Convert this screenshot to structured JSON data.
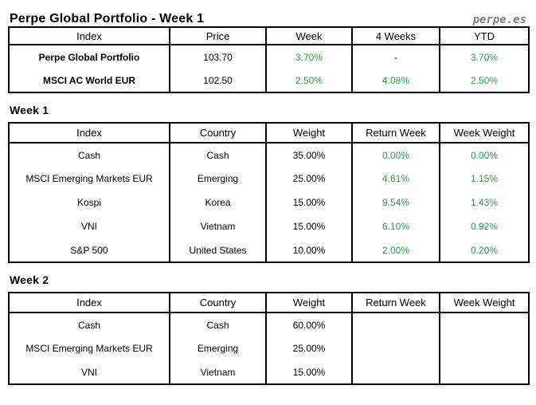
{
  "header": {
    "title": "Perpe Global Portfolio - Week 1",
    "brand": "perpe.es"
  },
  "colors": {
    "positive_green": "#2a9e4a",
    "brand_gray": "#7f7f7f",
    "border_black": "#000000",
    "text_black": "#000000",
    "page_bg": "#ffffff"
  },
  "summary_table": {
    "headers": [
      "Index",
      "Price",
      "Week",
      "4 Weeks",
      "YTD"
    ],
    "rows": [
      [
        "Perpe Global Portfolio",
        "103.70",
        "3.70%",
        "-",
        "3.70%"
      ],
      [
        "MSCI AC World EUR",
        "102.50",
        "2.50%",
        "4.08%",
        "2.50%"
      ]
    ]
  },
  "week1": {
    "title": "Week 1",
    "headers": [
      "Index",
      "Country",
      "Weight",
      "Return Week",
      "Week Weight"
    ],
    "rows": [
      [
        "Cash",
        "Cash",
        "35.00%",
        "0.00%",
        "0.00%"
      ],
      [
        "MSCI Emerging Markets EUR",
        "Emerging",
        "25.00%",
        "4.61%",
        "1.15%"
      ],
      [
        "Kospi",
        "Korea",
        "15.00%",
        "9.54%",
        "1.43%"
      ],
      [
        "VNI",
        "Vietnam",
        "15.00%",
        "6.10%",
        "0.92%"
      ],
      [
        "S&P 500",
        "United States",
        "10.00%",
        "2.00%",
        "0.20%"
      ]
    ]
  },
  "week2": {
    "title": "Week 2",
    "headers": [
      "Index",
      "Country",
      "Weight",
      "Return Week",
      "Week Weight"
    ],
    "rows": [
      [
        "Cash",
        "Cash",
        "60.00%",
        "",
        ""
      ],
      [
        "MSCI Emerging Markets EUR",
        "Emerging",
        "25.00%",
        "",
        ""
      ],
      [
        "VNI",
        "Vietnam",
        "15.00%",
        "",
        ""
      ]
    ]
  }
}
